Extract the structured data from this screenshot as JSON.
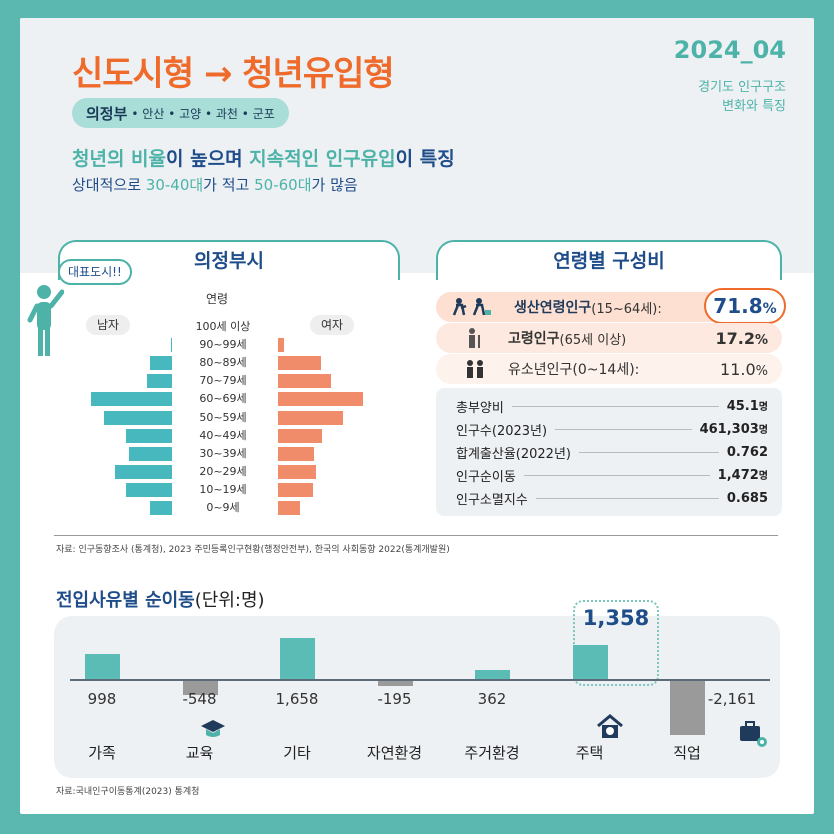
{
  "header": {
    "title": "신도시형 → 청년유입형",
    "date": "2024_04",
    "subtitle_line1": "경기도 인구구조",
    "subtitle_line2": "변화와 특징",
    "region_main": "의정부",
    "region_rest": "• 안산 • 고양 • 과천 • 군포",
    "lead1_a": "청년의 비율",
    "lead1_b": "이 높으며 ",
    "lead1_c": "지속적인 인구유입",
    "lead1_d": "이 특징",
    "lead2_a": "상대적으로 ",
    "lead2_b": "30-40대",
    "lead2_c": "가 적고 ",
    "lead2_d": "50-60대",
    "lead2_e": "가 많음"
  },
  "pyramid": {
    "section_title": "의정부시",
    "speech": "대표도시!!",
    "axis_title": "연령",
    "male_label": "남자",
    "female_label": "여자",
    "chart_data": {
      "type": "bar",
      "title": "의정부시",
      "categories": [
        "100세 이상",
        "90~99세",
        "80~89세",
        "70~79세",
        "60~69세",
        "50~59세",
        "40~49세",
        "30~39세",
        "20~29세",
        "10~19세",
        "0~9세"
      ],
      "series": [
        {
          "name": "남자",
          "values": [
            0,
            0.2,
            3.0,
            3.5,
            11.2,
            9.4,
            6.4,
            6.0,
            7.9,
            6.4,
            3.0
          ]
        },
        {
          "name": "여자",
          "values": [
            0,
            0.8,
            6.0,
            7.3,
            11.8,
            9.0,
            6.1,
            5.0,
            5.3,
            4.8,
            3.0
          ]
        }
      ]
    }
  },
  "composition": {
    "section_title": "연령별 구성비",
    "rows": [
      {
        "label": "생산연령인구",
        "sub": "(15~64세):",
        "value": "71.8",
        "unit": "%"
      },
      {
        "label": "고령인구",
        "sub": "(65세 이상)",
        "value": "17.2",
        "unit": "%"
      },
      {
        "label": "유소년인구(0~14세):",
        "sub": "",
        "value": "11.0",
        "unit": "%"
      }
    ],
    "stats": [
      {
        "k": "총부양비",
        "v": "45.1",
        "u": "명"
      },
      {
        "k": "인구수(2023년)",
        "v": "461,303",
        "u": "명"
      },
      {
        "k": "합계출산율(2022년)",
        "v": "0.762",
        "u": ""
      },
      {
        "k": "인구순이동",
        "v": "1,472",
        "u": "명"
      },
      {
        "k": "인구소멸지수",
        "v": "0.685",
        "u": ""
      }
    ]
  },
  "source1": "자료: 인구동향조사 (통계청), 2023 주민등록인구현황(행정안전부), 한국의 사회동향 2022(통계개발원)",
  "migration": {
    "title": "전입사유별 순이동",
    "unit": "(단위:명)",
    "highlight_value": "1,358",
    "chart_data": {
      "type": "bar",
      "title": "전입사유별 순이동",
      "categories": [
        "가족",
        "교육",
        "기타",
        "자연환경",
        "주거환경",
        "주택",
        "직업"
      ],
      "values": [
        998,
        -548,
        1658,
        -195,
        362,
        1358,
        -2161
      ],
      "value_labels": [
        "998",
        "-548",
        "1,658",
        "-195",
        "362",
        "",
        "-2,161"
      ],
      "colors": {
        "positive": "#5bbcb6",
        "negative": "#9a9a9a"
      }
    }
  },
  "source2": "자료:국내인구이동통계(2023) 통계청"
}
